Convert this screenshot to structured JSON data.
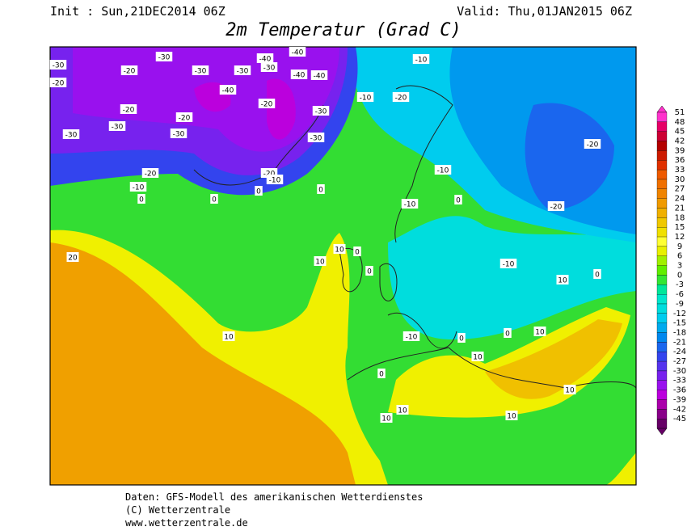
{
  "header": {
    "init": "Init : Sun,21DEC2014 06Z",
    "valid": "Valid: Thu,01JAN2015 06Z",
    "title": "2m Temperatur (Grad C)"
  },
  "colorbar": {
    "labels": [
      51,
      48,
      45,
      42,
      39,
      36,
      33,
      30,
      27,
      24,
      21,
      18,
      15,
      12,
      9,
      6,
      3,
      0,
      -3,
      -6,
      -9,
      -12,
      -15,
      -18,
      -21,
      -24,
      -27,
      -30,
      -33,
      -36,
      -39,
      -42,
      -45
    ],
    "colors": [
      "#ff33cc",
      "#e60066",
      "#cc0033",
      "#b30000",
      "#cc1a00",
      "#e03000",
      "#ee5a00",
      "#f07000",
      "#f08400",
      "#f09a00",
      "#f0b000",
      "#f0c800",
      "#f0e000",
      "#ffff33",
      "#e8f000",
      "#a0f000",
      "#60ee00",
      "#33e633",
      "#00e699",
      "#00e6cc",
      "#00dddd",
      "#00ccee",
      "#00aaee",
      "#0088ee",
      "#1a66ee",
      "#3344ee",
      "#5533ee",
      "#7722ee",
      "#9911ee",
      "#bb00dd",
      "#aa00aa",
      "#880088",
      "#660066"
    ]
  },
  "contour_labels": [
    -30,
    -20,
    -30,
    -20,
    -30,
    -40,
    -30,
    -40,
    -40,
    -40,
    -30,
    -40,
    -10,
    -20,
    -30,
    -20,
    -30,
    -20,
    -30,
    -10,
    -20,
    -30,
    -30,
    -20,
    -10,
    0,
    -20,
    -10,
    0,
    0,
    0,
    -10,
    0,
    -10,
    -20,
    -20,
    20,
    10,
    10,
    0,
    0,
    -10,
    10,
    0,
    10,
    -10,
    0,
    0,
    10,
    10,
    0,
    10,
    10,
    10,
    10
  ],
  "footer": [
    "Daten: GFS-Modell des amerikanischen Wetterdienstes",
    "(C) Wetterzentrale",
    "www.wetterzentrale.de"
  ]
}
